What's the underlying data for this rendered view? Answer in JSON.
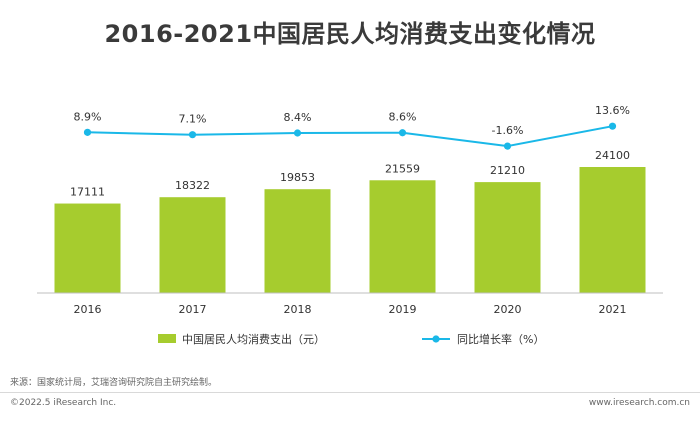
{
  "title": "2016-2021中国居民人均消费支出变化情况",
  "source": "来源：国家统计局，艾瑞咨询研究院自主研究绘制。",
  "copyright": "©2022.5 iResearch Inc.",
  "website": "www.iresearch.com.cn",
  "colors": {
    "bar": "#a6cc2e",
    "line": "#1ab8e8",
    "axis": "#bfbfbf"
  },
  "chart_data": {
    "type": "bar",
    "title": "2016-2021中国居民人均消费支出变化情况",
    "categories": [
      "2016",
      "2017",
      "2018",
      "2019",
      "2020",
      "2021"
    ],
    "series": [
      {
        "name": "中国居民人均消费支出（元）",
        "type": "bar",
        "values": [
          17111,
          18322,
          19853,
          21559,
          21210,
          24100
        ]
      },
      {
        "name": "同比增长率（%）",
        "type": "line",
        "values": [
          8.9,
          7.1,
          8.4,
          8.6,
          -1.6,
          13.6
        ],
        "labels": [
          "8.9%",
          "7.1%",
          "8.4%",
          "8.6%",
          "-1.6%",
          "13.6%"
        ]
      }
    ],
    "legend": "bottom",
    "grid": false
  }
}
